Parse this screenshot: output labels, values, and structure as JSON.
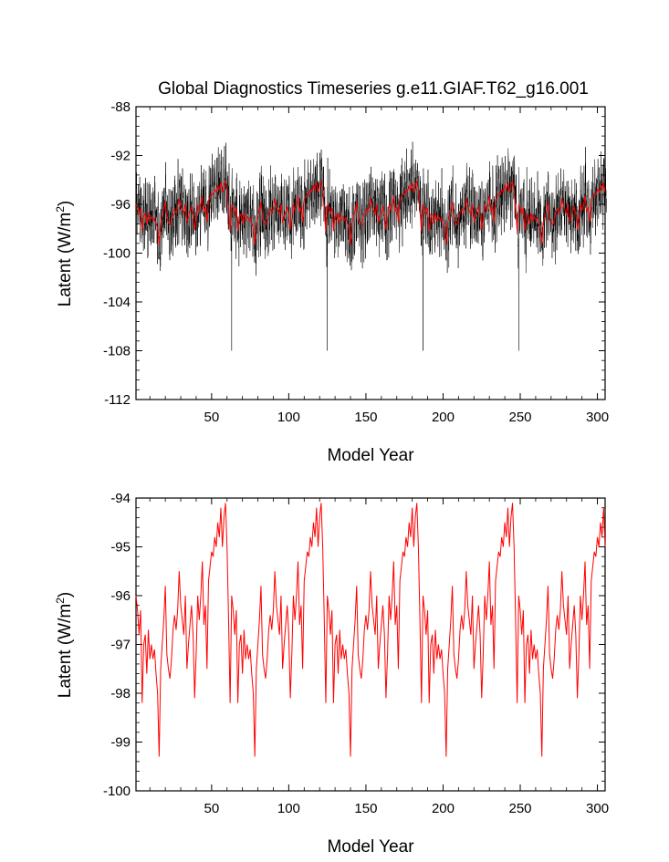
{
  "title": "Global Diagnostics Timeseries g.e11.GIAF.T62_g16.001",
  "colors": {
    "monthly": "#000000",
    "annual": "#ff0000",
    "axis": "#000000"
  },
  "chart_data": [
    {
      "type": "line",
      "title": "Global Diagnostics Timeseries g.e11.GIAF.T62_g16.001",
      "xlabel": "Model Year",
      "ylabel": "Latent (W/m²)",
      "ylabel_main": "Latent (W/m",
      "ylabel_sup": "2",
      "ylabel_end": ")",
      "xlim": [
        1,
        305
      ],
      "ylim": [
        -112,
        -88
      ],
      "x_ticks": [
        50,
        100,
        150,
        200,
        250,
        300
      ],
      "x_tick_labels": [
        "50",
        "100",
        "150",
        "200",
        "250",
        "300"
      ],
      "y_ticks": [
        -88,
        -92,
        -96,
        -100,
        -104,
        -108,
        -112
      ],
      "y_tick_labels": [
        "-88",
        "-92",
        "-96",
        "-100",
        "-104",
        "-108",
        "-112"
      ],
      "cycle_years": 62,
      "series": [
        {
          "name": "monthly",
          "color": "#000000",
          "description_values": {
            "typical_range": [
              -103.5,
              -89.5
            ],
            "spikes": [
              {
                "year": 63,
                "value": -108
              },
              {
                "year": 125,
                "value": -108
              },
              {
                "year": 187,
                "value": -108
              },
              {
                "year": 249,
                "value": -108
              }
            ]
          }
        },
        {
          "name": "annual",
          "color": "#ff0000",
          "source": "annual_cycle"
        }
      ]
    },
    {
      "type": "line",
      "xlabel": "Model Year",
      "ylabel": "Latent (W/m²)",
      "ylabel_main": "Latent (W/m",
      "ylabel_sup": "2",
      "ylabel_end": ")",
      "xlim": [
        1,
        305
      ],
      "ylim": [
        -100,
        -94
      ],
      "x_ticks": [
        50,
        100,
        150,
        200,
        250,
        300
      ],
      "x_tick_labels": [
        "50",
        "100",
        "150",
        "200",
        "250",
        "300"
      ],
      "y_ticks": [
        -94,
        -95,
        -96,
        -97,
        -98,
        -99,
        -100
      ],
      "y_tick_labels": [
        "-94",
        "-95",
        "-96",
        "-97",
        "-98",
        "-99",
        "-100"
      ],
      "series": [
        {
          "name": "annual",
          "color": "#ff0000",
          "cycle_years": 62,
          "annual_cycle": [
            -96.0,
            -96.3,
            -96.8,
            -96.3,
            -98.2,
            -97.0,
            -96.8,
            -97.6,
            -96.7,
            -97.3,
            -97.0,
            -97.3,
            -97.1,
            -97.6,
            -98.0,
            -99.3,
            -97.5,
            -97.0,
            -96.5,
            -95.8,
            -97.2,
            -97.5,
            -97.7,
            -97.3,
            -96.7,
            -96.4,
            -96.7,
            -96.3,
            -95.5,
            -96.2,
            -96.5,
            -96.8,
            -96.0,
            -97.5,
            -97.0,
            -96.6,
            -96.2,
            -96.8,
            -98.1,
            -97.2,
            -96.0,
            -96.5,
            -96.0,
            -95.3,
            -96.6,
            -96.2,
            -97.5,
            -95.7,
            -95.4,
            -95.1,
            -95.2,
            -94.8,
            -95.0,
            -94.5,
            -94.8,
            -94.2,
            -95.0,
            -94.4,
            -94.1,
            -95.0,
            -96.5,
            -98.2
          ],
          "tail_extra": [
            -95.6,
            -95.2,
            -95.8
          ]
        }
      ]
    }
  ]
}
